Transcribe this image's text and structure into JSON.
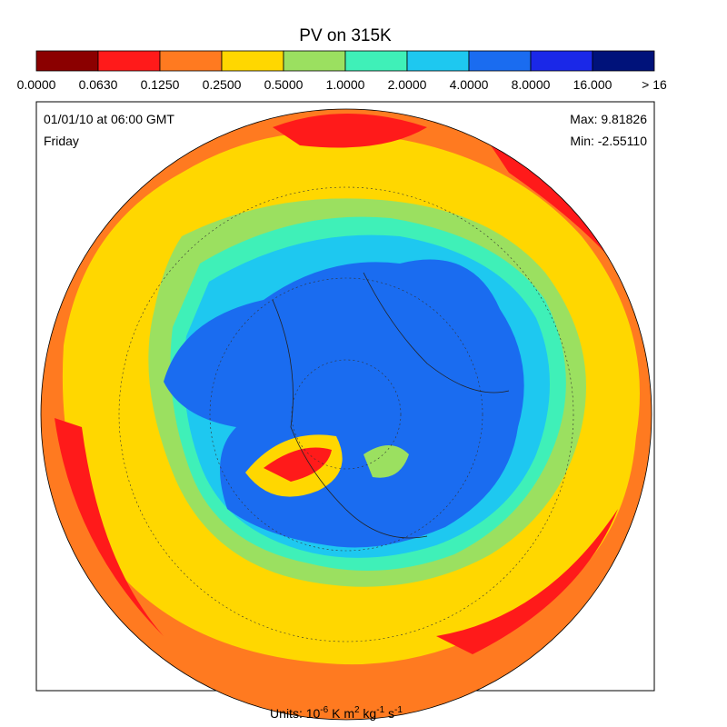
{
  "title": "PV on 315K",
  "colorbar": {
    "colors": [
      "#8b0000",
      "#ff1a1a",
      "#ff7a20",
      "#ffd700",
      "#9be060",
      "#3ff0b8",
      "#1ec8f0",
      "#1a6cf0",
      "#1a28e8",
      "#00127a"
    ],
    "labels": [
      "0.0000",
      "0.0630",
      "0.1250",
      "0.2500",
      "0.5000",
      "1.0000",
      "2.0000",
      "4.0000",
      "8.0000",
      "16.000",
      "> 16"
    ]
  },
  "info": {
    "date": "01/01/10 at 06:00 GMT",
    "day": "Friday",
    "max": "Max: 9.81826",
    "min": "Min: -2.55110"
  },
  "units": [
    "Units: 10",
    "-6",
    " K m",
    "2",
    " kg",
    "-1",
    " s",
    "-1"
  ]
}
